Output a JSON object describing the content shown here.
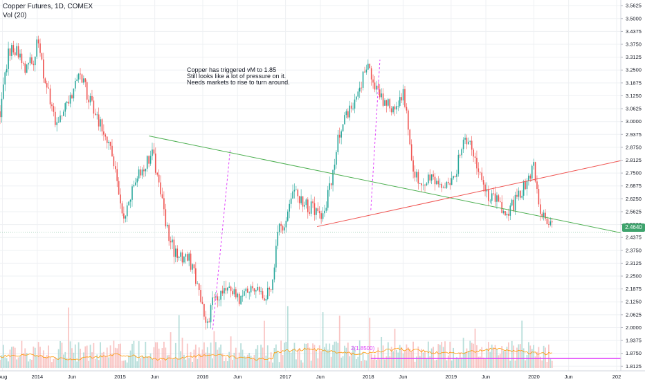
{
  "header": {
    "symbol_line": "Copper Futures, 1D, COMEX",
    "volume_line": "Vol (20)"
  },
  "annotation": {
    "lines": [
      "Copper has triggered vM to 1.85",
      "Still looks like a lot of pressure on it.",
      "Needs markets to rise to turn around."
    ]
  },
  "last_price_label": "2.4640",
  "target_label": "2(1.8500)",
  "colors": {
    "up": "#26a69a",
    "down": "#ef5350",
    "green_trend": "#4caf50",
    "red_trend": "#ef5350",
    "projection": "#e040fb",
    "target_line": "#e040fb",
    "volume_ma": "#ff9800",
    "price_tag": "#3ea36d"
  },
  "chart_data": {
    "type": "candlestick",
    "title": "Copper Futures, 1D, COMEX",
    "y_axis": {
      "range": [
        1.79,
        3.59
      ],
      "ticks": [
        "3.5625",
        "3.5000",
        "3.4375",
        "3.3750",
        "3.3125",
        "3.2500",
        "3.1875",
        "3.1250",
        "3.0625",
        "3.0000",
        "2.9375",
        "2.8750",
        "2.8125",
        "2.7500",
        "2.6875",
        "2.6250",
        "2.5625",
        "2.5000",
        "2.4375",
        "2.3750",
        "2.3125",
        "2.2500",
        "2.1875",
        "2.1250",
        "2.0625",
        "2.0000",
        "1.9375",
        "1.8750",
        "1.8125"
      ]
    },
    "x_axis": {
      "range": [
        2013.55,
        2021.05
      ],
      "ticks": [
        {
          "label": "Aug",
          "t": 2013.58
        },
        {
          "label": "2014",
          "t": 2014.0
        },
        {
          "label": "Jun",
          "t": 2014.42
        },
        {
          "label": "2015",
          "t": 2015.0
        },
        {
          "label": "Jun",
          "t": 2015.42
        },
        {
          "label": "2016",
          "t": 2016.0
        },
        {
          "label": "Jun",
          "t": 2016.42
        },
        {
          "label": "2017",
          "t": 2017.0
        },
        {
          "label": "Jun",
          "t": 2017.42
        },
        {
          "label": "2018",
          "t": 2018.0
        },
        {
          "label": "Jun",
          "t": 2018.42
        },
        {
          "label": "2019",
          "t": 2019.0
        },
        {
          "label": "Jun",
          "t": 2019.42
        },
        {
          "label": "2020",
          "t": 2020.0
        },
        {
          "label": "Jun",
          "t": 2020.42
        },
        {
          "label": "202",
          "t": 2021.0
        }
      ]
    },
    "price_path": [
      [
        2013.55,
        3.05
      ],
      [
        2013.65,
        3.32
      ],
      [
        2013.75,
        3.36
      ],
      [
        2013.85,
        3.25
      ],
      [
        2013.95,
        3.3
      ],
      [
        2014.0,
        3.38
      ],
      [
        2014.15,
        3.1
      ],
      [
        2014.22,
        2.98
      ],
      [
        2014.3,
        3.05
      ],
      [
        2014.42,
        3.12
      ],
      [
        2014.5,
        3.23
      ],
      [
        2014.6,
        3.14
      ],
      [
        2014.75,
        3.0
      ],
      [
        2014.9,
        2.86
      ],
      [
        2015.0,
        2.62
      ],
      [
        2015.05,
        2.53
      ],
      [
        2015.2,
        2.72
      ],
      [
        2015.32,
        2.8
      ],
      [
        2015.4,
        2.84
      ],
      [
        2015.5,
        2.62
      ],
      [
        2015.6,
        2.42
      ],
      [
        2015.7,
        2.34
      ],
      [
        2015.8,
        2.36
      ],
      [
        2015.9,
        2.26
      ],
      [
        2016.0,
        2.08
      ],
      [
        2016.04,
        2.01
      ],
      [
        2016.12,
        2.12
      ],
      [
        2016.3,
        2.2
      ],
      [
        2016.45,
        2.13
      ],
      [
        2016.6,
        2.2
      ],
      [
        2016.75,
        2.15
      ],
      [
        2016.85,
        2.23
      ],
      [
        2016.92,
        2.51
      ],
      [
        2017.0,
        2.5
      ],
      [
        2017.1,
        2.65
      ],
      [
        2017.25,
        2.59
      ],
      [
        2017.35,
        2.58
      ],
      [
        2017.45,
        2.53
      ],
      [
        2017.55,
        2.7
      ],
      [
        2017.65,
        2.95
      ],
      [
        2017.75,
        3.05
      ],
      [
        2017.85,
        3.1
      ],
      [
        2017.92,
        3.2
      ],
      [
        2018.0,
        3.25
      ],
      [
        2018.1,
        3.15
      ],
      [
        2018.2,
        3.08
      ],
      [
        2018.3,
        3.07
      ],
      [
        2018.42,
        3.15
      ],
      [
        2018.5,
        2.9
      ],
      [
        2018.55,
        2.76
      ],
      [
        2018.65,
        2.68
      ],
      [
        2018.75,
        2.72
      ],
      [
        2018.85,
        2.7
      ],
      [
        2018.95,
        2.68
      ],
      [
        2019.05,
        2.75
      ],
      [
        2019.15,
        2.9
      ],
      [
        2019.25,
        2.88
      ],
      [
        2019.35,
        2.75
      ],
      [
        2019.45,
        2.65
      ],
      [
        2019.55,
        2.62
      ],
      [
        2019.65,
        2.55
      ],
      [
        2019.75,
        2.6
      ],
      [
        2019.85,
        2.65
      ],
      [
        2019.95,
        2.75
      ],
      [
        2020.0,
        2.8
      ],
      [
        2020.05,
        2.6
      ],
      [
        2020.12,
        2.55
      ],
      [
        2020.18,
        2.52
      ],
      [
        2020.22,
        2.48
      ]
    ],
    "volume_ma_level": 0.52,
    "trendlines": [
      {
        "name": "green descending",
        "from": [
          2015.35,
          2.93
        ],
        "to": [
          2021.05,
          2.46
        ]
      },
      {
        "name": "red ascending",
        "from": [
          2017.38,
          2.49
        ],
        "to": [
          2021.05,
          2.81
        ]
      }
    ],
    "projections": [
      {
        "from": [
          2016.12,
          1.99
        ],
        "to": [
          2016.33,
          2.86
        ]
      },
      {
        "from": [
          2018.03,
          2.57
        ],
        "to": [
          2018.14,
          3.3
        ]
      }
    ],
    "horizontal_levels": [
      {
        "price": 2.464,
        "label": "2.4640"
      }
    ],
    "target_level": {
      "price": 1.85,
      "label": "2(1.8500)",
      "start": 2018.03
    }
  }
}
